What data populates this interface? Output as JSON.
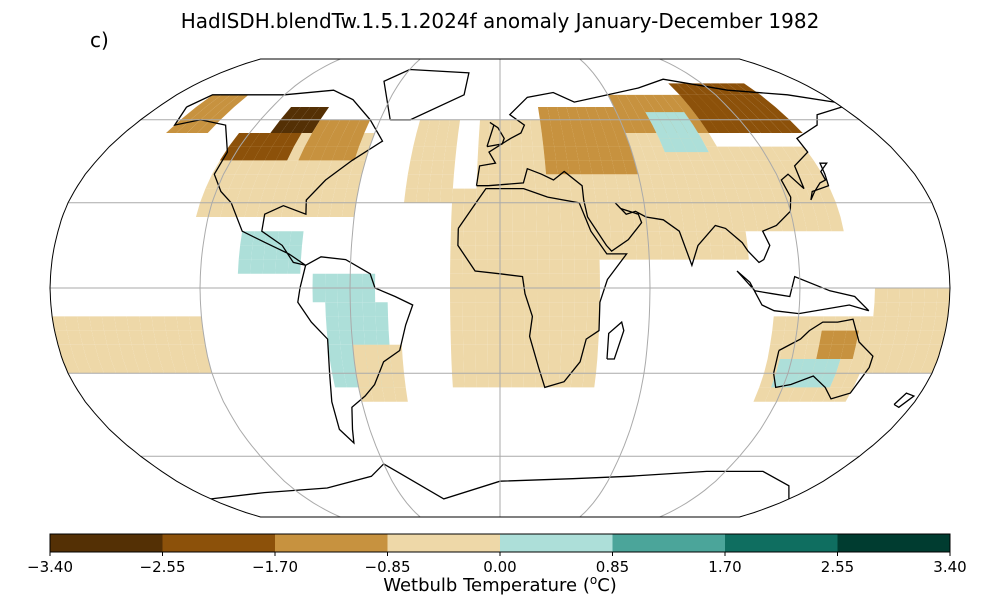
{
  "title": "HadISDH.blendTw.1.5.1.2024f anomaly January-December 1982",
  "panel_label": "c)",
  "colorbar": {
    "label": "Wetbulb Temperature (°C)",
    "ticks": [
      "−3.40",
      "−2.55",
      "−1.70",
      "−0.85",
      "0.00",
      "0.85",
      "1.70",
      "2.55",
      "3.40"
    ],
    "tick_values": [
      -3.4,
      -2.55,
      -1.7,
      -0.85,
      0.0,
      0.85,
      1.7,
      2.55,
      3.4
    ],
    "colors": [
      "#543005",
      "#8c510a",
      "#c7923f",
      "#eed8a8",
      "#addfd9",
      "#4ba59a",
      "#0f6e60",
      "#003c30"
    ]
  },
  "chart_data": {
    "type": "heatmap",
    "projection": "Robinson",
    "grid_resolution_deg": 5,
    "vmin": -3.4,
    "vmax": 3.4,
    "lon_gridlines": [
      -120,
      -60,
      0,
      60,
      120
    ],
    "lat_gridlines": [
      -60,
      -30,
      0,
      30,
      60
    ],
    "patches": [
      {
        "lon": [
          -125,
          -60
        ],
        "lat": [
          25,
          55
        ],
        "v": -0.5
      },
      {
        "lon": [
          -125,
          -95
        ],
        "lat": [
          45,
          55
        ],
        "v": -1.9
      },
      {
        "lon": [
          -110,
          -90
        ],
        "lat": [
          55,
          65
        ],
        "v": -2.7
      },
      {
        "lon": [
          -90,
          -65
        ],
        "lat": [
          45,
          60
        ],
        "v": -1.4
      },
      {
        "lon": [
          -160,
          -140
        ],
        "lat": [
          55,
          70
        ],
        "v": -1.2
      },
      {
        "lon": [
          -75,
          -50
        ],
        "lat": [
          -5,
          5
        ],
        "v": 0.5
      },
      {
        "lon": [
          -70,
          -45
        ],
        "lat": [
          -35,
          -5
        ],
        "v": 0.4
      },
      {
        "lon": [
          -105,
          -80
        ],
        "lat": [
          5,
          20
        ],
        "v": 0.5
      },
      {
        "lon": [
          -60,
          -40
        ],
        "lat": [
          -40,
          -20
        ],
        "v": -0.5
      },
      {
        "lon": [
          -20,
          40
        ],
        "lat": [
          -35,
          35
        ],
        "v": -0.5
      },
      {
        "lon": [
          -10,
          40
        ],
        "lat": [
          35,
          60
        ],
        "v": -0.5
      },
      {
        "lon": [
          40,
          100
        ],
        "lat": [
          10,
          60
        ],
        "v": -0.6
      },
      {
        "lon": [
          20,
          60
        ],
        "lat": [
          40,
          65
        ],
        "v": -1.5
      },
      {
        "lon": [
          60,
          120
        ],
        "lat": [
          55,
          70
        ],
        "v": -1.3
      },
      {
        "lon": [
          100,
          145
        ],
        "lat": [
          55,
          72
        ],
        "v": -2.0
      },
      {
        "lon": [
          75,
          95
        ],
        "lat": [
          48,
          60
        ],
        "v": 0.5
      },
      {
        "lon": [
          100,
          140
        ],
        "lat": [
          20,
          50
        ],
        "v": -0.5
      },
      {
        "lon": [
          110,
          150
        ],
        "lat": [
          -40,
          -12
        ],
        "v": -0.6
      },
      {
        "lon": [
          130,
          145
        ],
        "lat": [
          -25,
          -15
        ],
        "v": -1.2
      },
      {
        "lon": [
          115,
          140
        ],
        "lat": [
          -35,
          -28
        ],
        "v": 0.4
      },
      {
        "lon": [
          -180,
          -120
        ],
        "lat": [
          -30,
          -10
        ],
        "v": -0.5
      },
      {
        "lon": [
          150,
          180
        ],
        "lat": [
          -30,
          0
        ],
        "v": -0.5
      },
      {
        "lon": [
          -40,
          -20
        ],
        "lat": [
          30,
          60
        ],
        "v": -0.6
      }
    ]
  }
}
